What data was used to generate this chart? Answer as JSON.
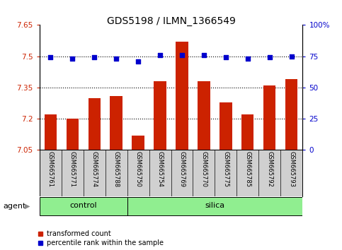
{
  "title": "GDS5198 / ILMN_1366549",
  "samples": [
    "GSM665761",
    "GSM665771",
    "GSM665774",
    "GSM665788",
    "GSM665750",
    "GSM665754",
    "GSM665769",
    "GSM665770",
    "GSM665775",
    "GSM665785",
    "GSM665792",
    "GSM665793"
  ],
  "groups": [
    {
      "label": "control",
      "count": 4,
      "color": "#90EE90"
    },
    {
      "label": "silica",
      "count": 8,
      "color": "#90EE90"
    }
  ],
  "transformed_count": [
    7.22,
    7.2,
    7.3,
    7.31,
    7.12,
    7.38,
    7.57,
    7.38,
    7.28,
    7.22,
    7.36,
    7.39
  ],
  "percentile_rank": [
    74,
    73,
    74,
    73,
    71,
    76,
    76,
    76,
    74,
    73,
    74,
    75
  ],
  "bar_color": "#cc2200",
  "dot_color": "#0000cc",
  "ylim_left": [
    7.05,
    7.65
  ],
  "ylim_right": [
    0,
    100
  ],
  "yticks_left": [
    7.05,
    7.2,
    7.35,
    7.5,
    7.65
  ],
  "yticks_right": [
    0,
    25,
    50,
    75,
    100
  ],
  "ytick_labels_right": [
    "0",
    "25",
    "50",
    "75",
    "100%"
  ],
  "hlines": [
    7.2,
    7.35,
    7.5
  ],
  "agent_label": "agent",
  "legend_items": [
    {
      "label": "transformed count",
      "color": "#cc2200",
      "marker": "s"
    },
    {
      "label": "percentile rank within the sample",
      "color": "#0000cc",
      "marker": "s"
    }
  ],
  "group_box_color": "#90EE90",
  "sample_box_color": "#d0d0d0"
}
